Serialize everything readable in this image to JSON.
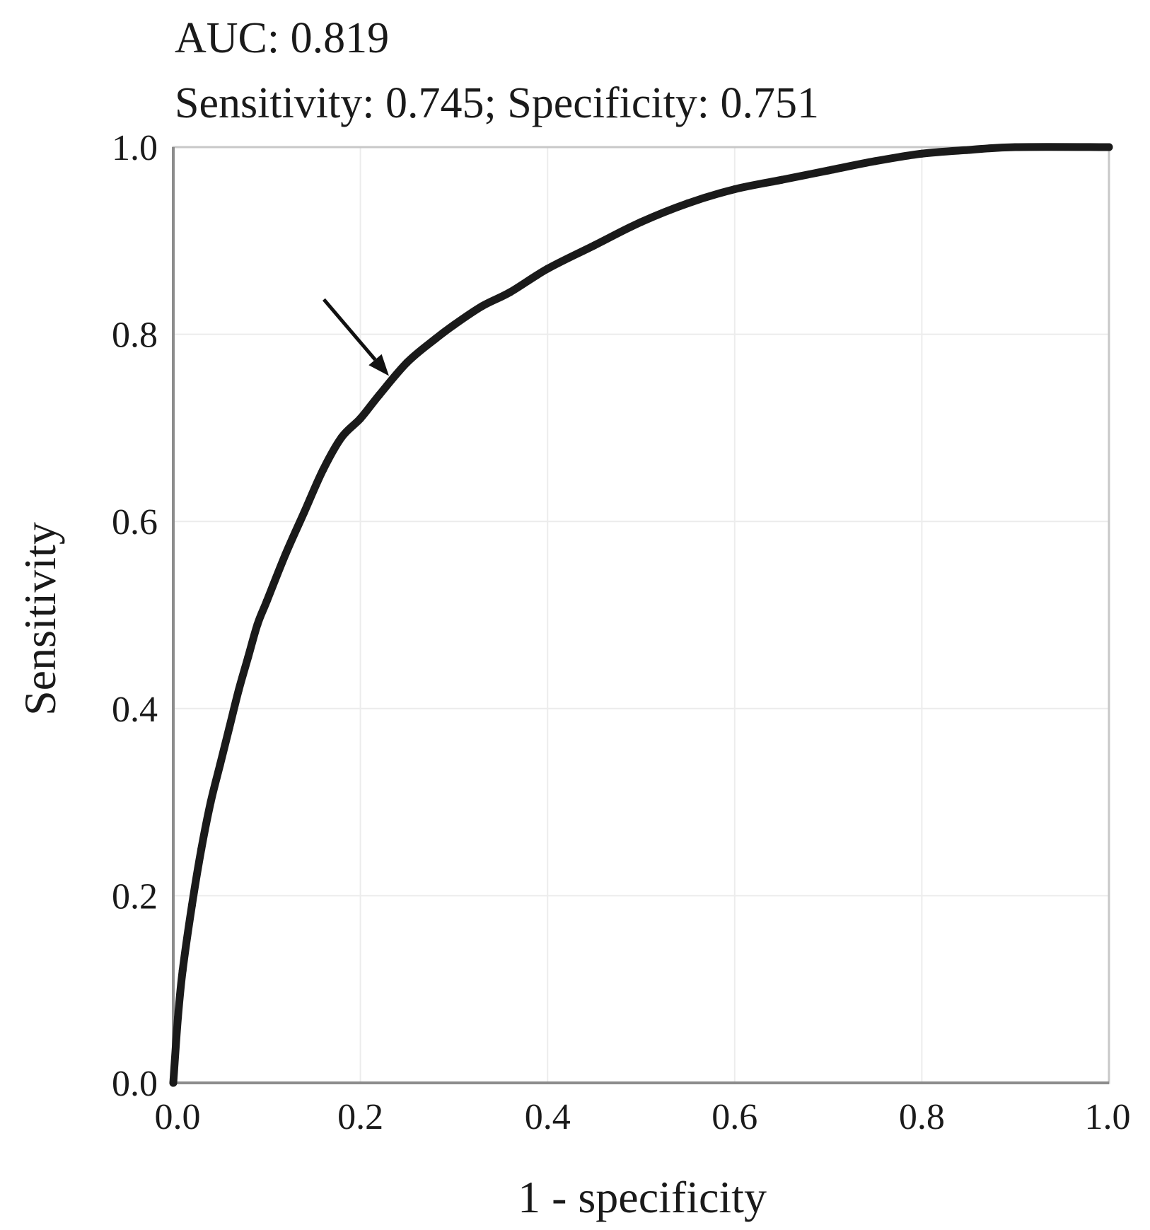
{
  "chart_data": {
    "type": "line",
    "title": "AUC: 0.819",
    "subtitle": "Sensitivity: 0.745; Specificity: 0.751",
    "xlabel": "1 - specificity",
    "ylabel": "Sensitivity",
    "xlim": [
      0,
      1
    ],
    "ylim": [
      0,
      1
    ],
    "x_ticks": [
      "0.0",
      "0.2",
      "0.4",
      "0.6",
      "0.8",
      "1.0"
    ],
    "y_ticks": [
      "0.0",
      "0.2",
      "0.4",
      "0.6",
      "0.8",
      "1.0"
    ],
    "grid": true,
    "legend": "none",
    "line_color": "#1a1a1a",
    "series": [
      {
        "x": [
          0.0,
          0.005,
          0.01,
          0.02,
          0.03,
          0.04,
          0.05,
          0.06,
          0.07,
          0.08,
          0.09,
          0.1,
          0.12,
          0.14,
          0.16,
          0.18,
          0.2,
          0.22,
          0.25,
          0.28,
          0.3,
          0.33,
          0.36,
          0.4,
          0.45,
          0.5,
          0.55,
          0.6,
          0.65,
          0.7,
          0.75,
          0.8,
          0.85,
          0.9,
          1.0
        ],
        "y": [
          0.0,
          0.07,
          0.12,
          0.19,
          0.25,
          0.3,
          0.34,
          0.38,
          0.42,
          0.455,
          0.49,
          0.515,
          0.565,
          0.61,
          0.655,
          0.69,
          0.71,
          0.735,
          0.77,
          0.795,
          0.81,
          0.83,
          0.845,
          0.87,
          0.895,
          0.92,
          0.94,
          0.955,
          0.965,
          0.975,
          0.985,
          0.993,
          0.997,
          1.0,
          1.0
        ]
      }
    ],
    "annotations": [
      {
        "type": "arrow",
        "points_to": [
          0.235,
          0.745
        ]
      }
    ]
  }
}
